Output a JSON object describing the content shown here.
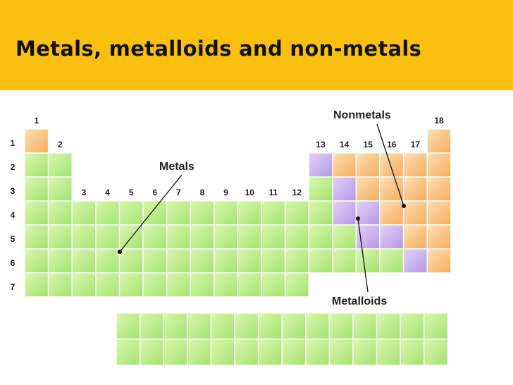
{
  "header": {
    "title": "Metals, metalloids and non-metals"
  },
  "table": {
    "groups": [
      "1",
      "2",
      "3",
      "4",
      "5",
      "6",
      "7",
      "8",
      "9",
      "10",
      "11",
      "12",
      "13",
      "14",
      "15",
      "16",
      "17",
      "18"
    ],
    "periods": [
      "1",
      "2",
      "3",
      "4",
      "5",
      "6",
      "7"
    ]
  },
  "labels": {
    "metals": "Metals",
    "nonmetals": "Nonmetals",
    "metalloids": "Metalloids"
  }
}
